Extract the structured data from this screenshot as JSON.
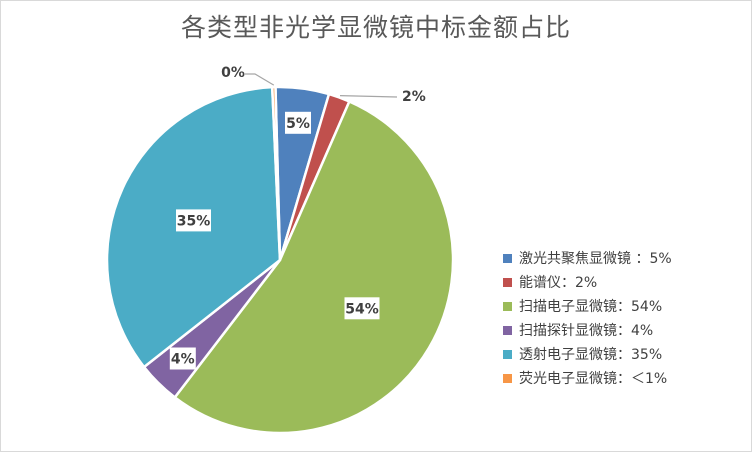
{
  "chart_data": {
    "type": "pie",
    "title": "各类型非光学显微镜中标金额占比",
    "slices": [
      {
        "name": "激光共聚焦显微镜 ：5%",
        "label": "5%",
        "value": 5,
        "color": "#4f81bd"
      },
      {
        "name": "能谱仪：2%",
        "label": "2%",
        "value": 2,
        "color": "#c0504d"
      },
      {
        "name": "扫描电子显微镜：54%",
        "label": "54%",
        "value": 54,
        "color": "#9bbb59"
      },
      {
        "name": "扫描探针显微镜：4%",
        "label": "4%",
        "value": 4,
        "color": "#8064a2"
      },
      {
        "name": "透射电子显微镜：35%",
        "label": "35%",
        "value": 35,
        "color": "#4bacc6"
      },
      {
        "name": "荧光电子显微镜：＜1%",
        "label": "0%",
        "value": 0.3,
        "color": "#f79646"
      }
    ],
    "legend_position": "right"
  }
}
